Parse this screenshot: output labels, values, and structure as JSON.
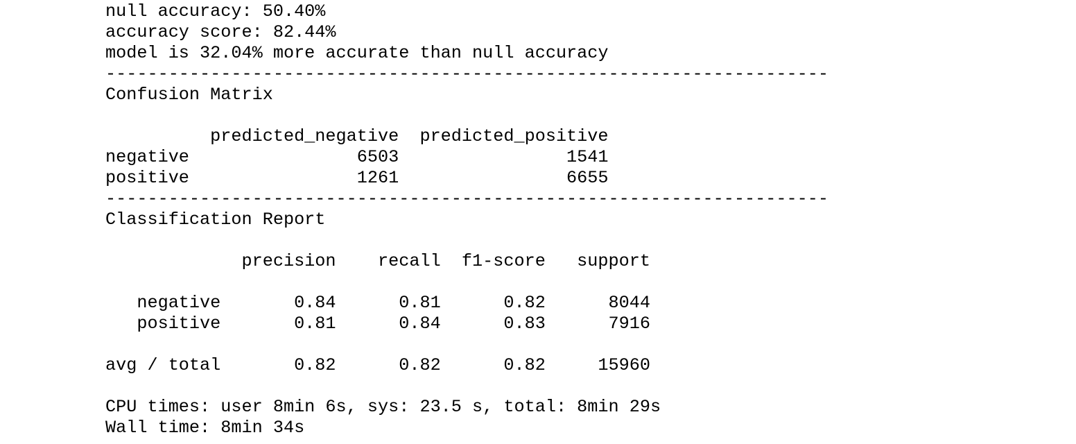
{
  "summary": {
    "null_accuracy": "null accuracy: 50.40%",
    "accuracy_score": "accuracy score: 82.44%",
    "improvement": "model is 32.04% more accurate than null accuracy"
  },
  "divider": "---------------------------------------------------------------------",
  "confusion_matrix": {
    "title": "Confusion Matrix",
    "header": "          predicted_negative  predicted_positive",
    "rows": [
      "negative                6503                1541",
      "positive                1261                6655"
    ]
  },
  "classification_report": {
    "title": "Classification Report",
    "header": "             precision    recall  f1-score   support",
    "rows": [
      "   negative       0.84      0.81      0.82      8044",
      "   positive       0.81      0.84      0.83      7916"
    ],
    "total": "avg / total       0.82      0.82      0.82     15960"
  },
  "timing": {
    "cpu_times": "CPU times: user 8min 6s, sys: 23.5 s, total: 8min 29s",
    "wall_time": "Wall time: 8min 34s"
  }
}
